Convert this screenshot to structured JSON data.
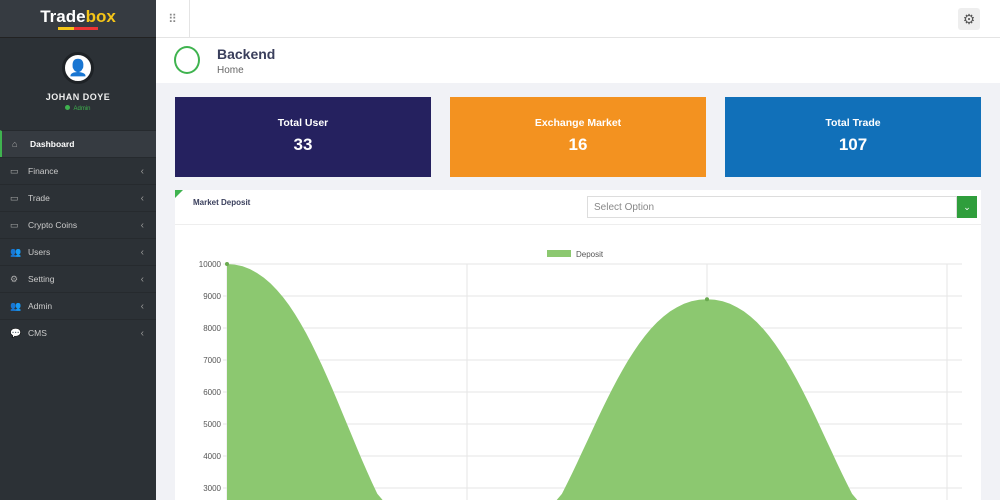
{
  "brand": {
    "name_a": "Trade",
    "name_b": "box"
  },
  "user": {
    "name": "JOHAN DOYE",
    "role": "Admin"
  },
  "sidebar": {
    "items": [
      {
        "label": "Dashboard",
        "icon": "home-icon",
        "active": true
      },
      {
        "label": "Finance",
        "icon": "card-icon"
      },
      {
        "label": "Trade",
        "icon": "card-icon"
      },
      {
        "label": "Crypto Coins",
        "icon": "card-icon"
      },
      {
        "label": "Users",
        "icon": "users-icon"
      },
      {
        "label": "Setting",
        "icon": "gear-icon"
      },
      {
        "label": "Admin",
        "icon": "users-icon"
      },
      {
        "label": "CMS",
        "icon": "chat-icon"
      }
    ]
  },
  "header": {
    "title": "Backend",
    "subtitle": "Home"
  },
  "cards": [
    {
      "title": "Total User",
      "value": "33",
      "color": "#25215f"
    },
    {
      "title": "Exchange Market",
      "value": "16",
      "color": "#f39220"
    },
    {
      "title": "Total Trade",
      "value": "107",
      "color": "#1170b9"
    }
  ],
  "panel": {
    "title": "Market Deposit",
    "select_placeholder": "Select Option"
  },
  "chart_data": {
    "type": "area",
    "legend": [
      "Deposit"
    ],
    "legend_placement": "top-center",
    "series": [
      {
        "name": "Deposit",
        "values": [
          10000,
          0,
          8900,
          0
        ],
        "color": "#8cc870"
      }
    ],
    "y_ticks": [
      10000,
      9000,
      8000,
      7000,
      6000,
      5000,
      4000,
      3000
    ],
    "grid": true
  }
}
